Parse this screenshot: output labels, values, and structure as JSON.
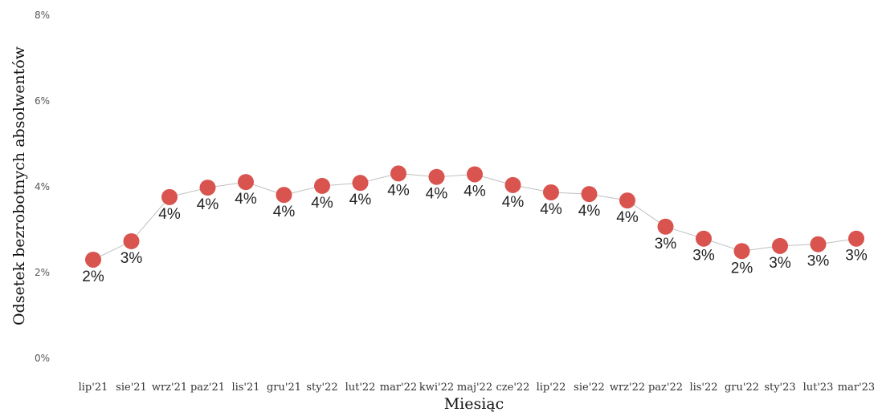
{
  "chart_data": {
    "type": "line",
    "xlabel": "Miesiąc",
    "ylabel": "Odsetek bezrobotnych absolwentów",
    "ylim": [
      0,
      8
    ],
    "yticks": [
      "0%",
      "2%",
      "4%",
      "6%",
      "8%"
    ],
    "grid": false,
    "categories": [
      "lip'21",
      "sie'21",
      "wrz'21",
      "paz'21",
      "lis'21",
      "gru'21",
      "sty'22",
      "lut'22",
      "mar'22",
      "kwi'22",
      "maj'22",
      "cze'22",
      "lip'22",
      "sie'22",
      "wrz'22",
      "paz'22",
      "lis'22",
      "gru'22",
      "sty'23",
      "lut'23",
      "mar'23"
    ],
    "values": [
      2.3,
      2.73,
      3.76,
      3.98,
      4.11,
      3.81,
      4.02,
      4.09,
      4.31,
      4.23,
      4.29,
      4.04,
      3.87,
      3.83,
      3.68,
      3.07,
      2.79,
      2.5,
      2.62,
      2.66,
      2.79
    ],
    "labels": [
      "2%",
      "3%",
      "4%",
      "4%",
      "4%",
      "4%",
      "4%",
      "4%",
      "4%",
      "4%",
      "4%",
      "4%",
      "4%",
      "4%",
      "4%",
      "3%",
      "3%",
      "2%",
      "3%",
      "3%",
      "3%"
    ],
    "colors": {
      "marker": "#d9534f",
      "line": "#bfbfbf"
    }
  }
}
